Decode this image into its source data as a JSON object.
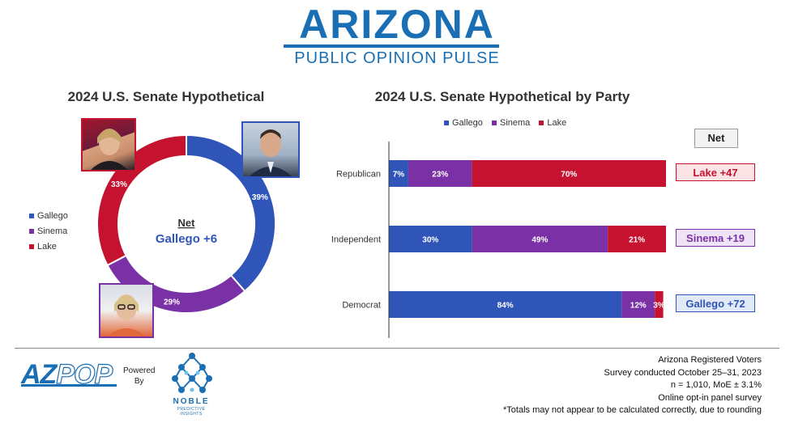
{
  "header": {
    "title": "ARIZONA",
    "subtitle": "PUBLIC OPINION PULSE"
  },
  "colors": {
    "gallego": "#2f55b8",
    "sinema": "#7a31a5",
    "lake": "#c4122f"
  },
  "chart_data": [
    {
      "type": "pie",
      "title": "2024 U.S. Senate Hypothetical",
      "labels": [
        "Gallego",
        "Sinema",
        "Lake"
      ],
      "values": [
        39,
        29,
        33
      ],
      "value_labels": [
        "39%",
        "29%",
        "33%"
      ],
      "center_label": "Net",
      "center_value": "Gallego +6",
      "legend_position": "left"
    },
    {
      "type": "bar",
      "orientation": "horizontal",
      "stacked": true,
      "title": "2024 U.S. Senate Hypothetical by Party",
      "categories": [
        "Republican",
        "Independent",
        "Democrat"
      ],
      "series": [
        {
          "name": "Gallego",
          "values": [
            7,
            30,
            84
          ]
        },
        {
          "name": "Sinema",
          "values": [
            23,
            49,
            12
          ]
        },
        {
          "name": "Lake",
          "values": [
            70,
            21,
            3
          ]
        }
      ],
      "xlim": [
        0,
        100
      ],
      "legend_position": "top",
      "net_header": "Net",
      "net_labels": [
        "Lake +47",
        "Sinema +19",
        "Gallego +72"
      ]
    }
  ],
  "footer": {
    "logo_az": "AZ",
    "logo_pop": "POP",
    "powered_by_line1": "Powered",
    "powered_by_line2": "By",
    "noble_name": "NOBLE",
    "noble_sub": "PREDICTIVE INSIGHTS",
    "notes": [
      "Arizona Registered Voters",
      "Survey conducted October 25–31, 2023",
      "n = 1,010, MoE ± 3.1%",
      "Online opt-in panel survey",
      "*Totals may not appear to be calculated correctly, due to rounding"
    ]
  }
}
